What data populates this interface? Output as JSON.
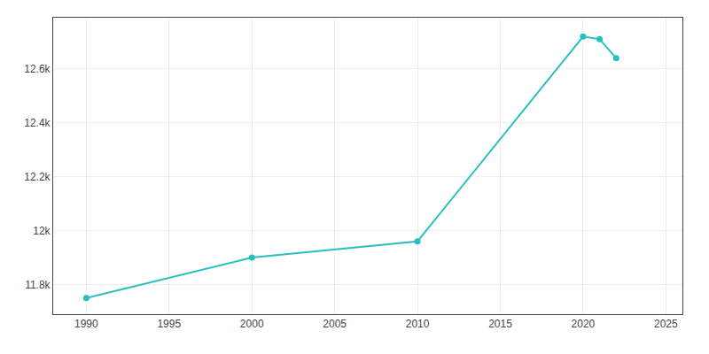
{
  "chart_data": {
    "type": "line",
    "x": [
      1990,
      2000,
      2010,
      2020,
      2021,
      2022
    ],
    "values": [
      11750,
      11900,
      11960,
      12720,
      12710,
      12640
    ],
    "color": "#2abfbf",
    "marker": "circle",
    "xlim": [
      1988,
      2026
    ],
    "xticks": [
      1990,
      1995,
      2000,
      2005,
      2010,
      2015,
      2020,
      2025
    ],
    "ylim": [
      11690,
      12790
    ],
    "yticks": [
      {
        "value": 11800,
        "label": "11.8k"
      },
      {
        "value": 12000,
        "label": "12k"
      },
      {
        "value": 12200,
        "label": "12.2k"
      },
      {
        "value": 12400,
        "label": "12.4k"
      },
      {
        "value": 12600,
        "label": "12.6k"
      }
    ],
    "grid": true
  }
}
